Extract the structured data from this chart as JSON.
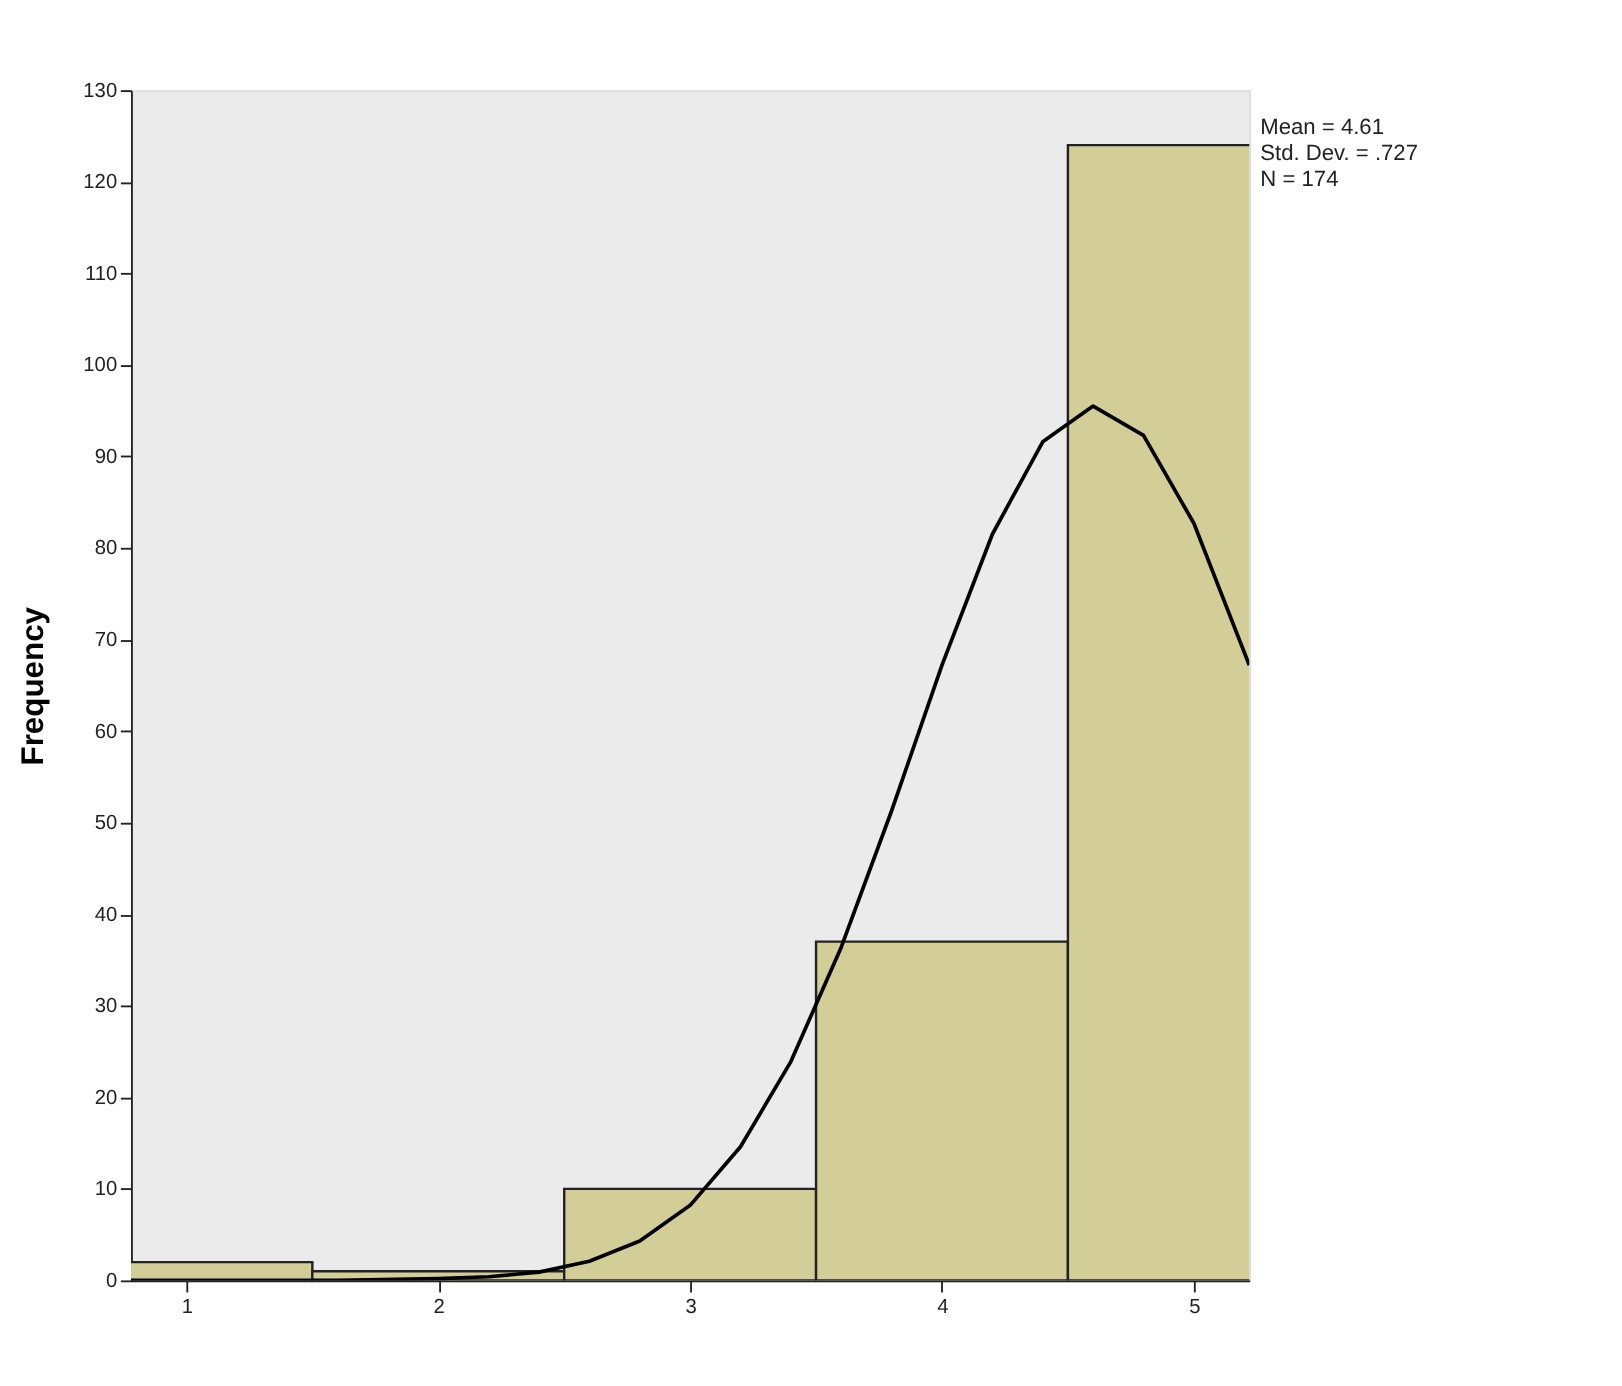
{
  "chart_data": {
    "type": "histogram",
    "ylabel": "Frequency",
    "bins": [
      0.5,
      1.5,
      2.5,
      3.5,
      4.5,
      5.5
    ],
    "values": [
      2,
      1,
      10,
      37,
      124
    ],
    "color": "#d3ce97",
    "xlim": [
      0.78,
      5.22
    ],
    "xticks": [
      1,
      2,
      3,
      4,
      5
    ],
    "ylim": [
      0,
      130
    ],
    "yticks": [
      0,
      10,
      20,
      30,
      40,
      50,
      60,
      70,
      80,
      90,
      100,
      110,
      120,
      130
    ],
    "grid": false,
    "series": [
      {
        "type": "line",
        "color": "#000000",
        "x": [
          0.78,
          1.6,
          2.0,
          2.2,
          2.4,
          2.6,
          2.8,
          3.0,
          3.2,
          3.4,
          3.6,
          3.8,
          4.0,
          4.2,
          4.4,
          4.6,
          4.8,
          5.0,
          5.22
        ],
        "values": [
          0,
          0,
          0.2,
          0.4,
          0.9,
          2.1,
          4.3,
          8.2,
          14.6,
          23.9,
          36.4,
          51.3,
          67.2,
          81.5,
          91.6,
          95.5,
          92.3,
          82.7,
          67.2
        ]
      }
    ],
    "annotations": [
      "Mean = 4.61",
      "Std. Dev. = .727",
      "N = 174"
    ]
  }
}
